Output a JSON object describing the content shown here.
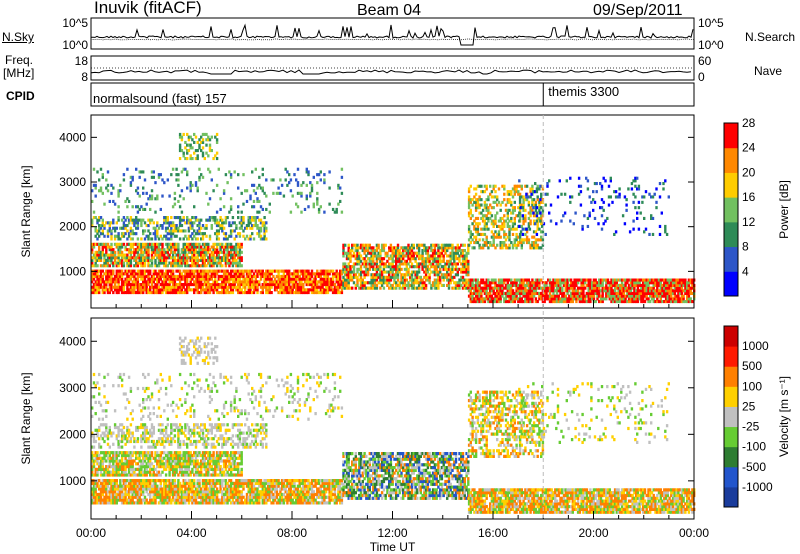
{
  "header": {
    "station": "Inuvik (fitACF)",
    "beam": "Beam 04",
    "date": "09/Sep/2011"
  },
  "side_labels": {
    "nsky": "N.Sky",
    "freq": "Freq.",
    "freq_unit": "[MHz]",
    "cpid": "CPID",
    "nsearch": "N.Search",
    "nave": "Nave"
  },
  "chart_data": [
    {
      "type": "line",
      "name": "nsky-nsearch-panel",
      "yticks_left": [
        "10^5",
        "10^0"
      ],
      "yticks_right": [
        "10^5",
        "10^0"
      ],
      "yscale": "log"
    },
    {
      "type": "line",
      "name": "freq-nave-panel",
      "yticks_left": [
        "18",
        "8"
      ],
      "yticks_right": [
        "60",
        "0"
      ],
      "ylim_left": [
        8,
        18
      ],
      "ylim_right": [
        0,
        60
      ]
    },
    {
      "type": "table",
      "name": "cpid-panel",
      "segments": [
        {
          "label": "normalsound (fast) 157",
          "start_hour": 0,
          "end_hour": 18.0
        },
        {
          "label": "themis 3300",
          "start_hour": 18.0,
          "end_hour": 24
        }
      ]
    },
    {
      "type": "heatmap",
      "name": "power-panel",
      "ylabel": "Slant Range [km]",
      "yticks": [
        1000,
        2000,
        3000,
        4000
      ],
      "ylim": [
        180,
        4500
      ],
      "xlim": [
        0,
        24
      ],
      "colorbar": {
        "label": "Power [dB]",
        "ticks": [
          "4",
          "8",
          "12",
          "16",
          "20",
          "24",
          "28"
        ],
        "colors": [
          "#0000ff",
          "#2d56c8",
          "#2e8b57",
          "#72c060",
          "#ffcc00",
          "#ff8800",
          "#ff0000"
        ]
      }
    },
    {
      "type": "heatmap",
      "name": "velocity-panel",
      "ylabel": "Slant Range [km]",
      "xlabel": "Time UT",
      "yticks": [
        1000,
        2000,
        3000,
        4000
      ],
      "ylim": [
        180,
        4500
      ],
      "xlim": [
        0,
        24
      ],
      "xticks": [
        "00:00",
        "04:00",
        "08:00",
        "12:00",
        "16:00",
        "20:00",
        "00:00"
      ],
      "colorbar": {
        "label": "Velocity [m s⁻¹]",
        "ticks": [
          "1000",
          "500",
          "100",
          "25",
          "-25",
          "-100",
          "-500",
          "-1000"
        ],
        "colors": [
          "#1a3c9c",
          "#2255cc",
          "#2e7d32",
          "#66cc33",
          "#c0c0c0",
          "#ffd000",
          "#ff8000",
          "#ff1a00",
          "#cc0000"
        ]
      }
    }
  ]
}
